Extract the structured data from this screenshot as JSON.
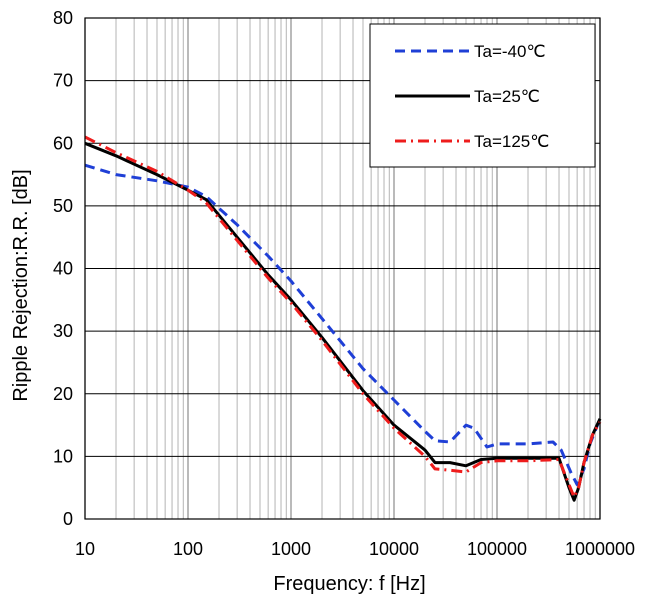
{
  "chart_data": {
    "type": "line",
    "xlabel": "Frequency: f [Hz]",
    "ylabel": "Ripple Rejection:R.R. [dB]",
    "x_scale": "log",
    "xlim": [
      10,
      1000000
    ],
    "ylim": [
      0,
      80
    ],
    "grid": true,
    "legend_position": "top-right",
    "x_ticks": [
      {
        "value": 10,
        "label": "10"
      },
      {
        "value": 100,
        "label": "100"
      },
      {
        "value": 1000,
        "label": "1000"
      },
      {
        "value": 10000,
        "label": "10000"
      },
      {
        "value": 100000,
        "label": "100000"
      },
      {
        "value": 1000000,
        "label": "1000000"
      }
    ],
    "y_ticks": [
      {
        "value": 0,
        "label": "0"
      },
      {
        "value": 10,
        "label": "10"
      },
      {
        "value": 20,
        "label": "20"
      },
      {
        "value": 30,
        "label": "30"
      },
      {
        "value": 40,
        "label": "40"
      },
      {
        "value": 50,
        "label": "50"
      },
      {
        "value": 60,
        "label": "60"
      },
      {
        "value": 70,
        "label": "70"
      },
      {
        "value": 80,
        "label": "80"
      }
    ],
    "series": [
      {
        "name": "Ta=-40℃",
        "color": "#1f3fd6",
        "style": "dashed",
        "points": [
          [
            10,
            56.5
          ],
          [
            20,
            55
          ],
          [
            50,
            54
          ],
          [
            100,
            53
          ],
          [
            150,
            51.5
          ],
          [
            300,
            47
          ],
          [
            600,
            42
          ],
          [
            1000,
            38
          ],
          [
            2000,
            32
          ],
          [
            5000,
            24
          ],
          [
            10000,
            19
          ],
          [
            20000,
            14
          ],
          [
            25000,
            12.5
          ],
          [
            35000,
            12.3
          ],
          [
            50000,
            15
          ],
          [
            60000,
            14.5
          ],
          [
            80000,
            11.5
          ],
          [
            100000,
            12
          ],
          [
            200000,
            12
          ],
          [
            350000,
            12.3
          ],
          [
            420000,
            11
          ],
          [
            520000,
            7.5
          ],
          [
            600000,
            5.5
          ],
          [
            700000,
            8
          ],
          [
            800000,
            12
          ],
          [
            1000000,
            16
          ]
        ]
      },
      {
        "name": "Ta=25℃",
        "color": "#000000",
        "style": "solid",
        "points": [
          [
            10,
            60
          ],
          [
            20,
            58
          ],
          [
            50,
            55
          ],
          [
            100,
            52.5
          ],
          [
            150,
            51
          ],
          [
            300,
            45
          ],
          [
            600,
            39
          ],
          [
            1000,
            35
          ],
          [
            2000,
            29
          ],
          [
            5000,
            20.5
          ],
          [
            10000,
            15
          ],
          [
            20000,
            11
          ],
          [
            25000,
            9
          ],
          [
            35000,
            9
          ],
          [
            50000,
            8.5
          ],
          [
            70000,
            9.5
          ],
          [
            100000,
            9.7
          ],
          [
            200000,
            9.7
          ],
          [
            400000,
            9.7
          ],
          [
            500000,
            5
          ],
          [
            560000,
            3
          ],
          [
            620000,
            5
          ],
          [
            700000,
            9
          ],
          [
            850000,
            13.5
          ],
          [
            1000000,
            16
          ]
        ]
      },
      {
        "name": "Ta=125℃",
        "color": "#ee1c1c",
        "style": "dashdot",
        "points": [
          [
            10,
            61
          ],
          [
            20,
            58.5
          ],
          [
            50,
            55.5
          ],
          [
            100,
            52.5
          ],
          [
            150,
            50.5
          ],
          [
            300,
            44.5
          ],
          [
            600,
            38.5
          ],
          [
            1000,
            34.5
          ],
          [
            2000,
            28.5
          ],
          [
            5000,
            20
          ],
          [
            10000,
            14.5
          ],
          [
            20000,
            10
          ],
          [
            25000,
            8
          ],
          [
            35000,
            7.8
          ],
          [
            50000,
            7.5
          ],
          [
            70000,
            9
          ],
          [
            100000,
            9.3
          ],
          [
            200000,
            9.3
          ],
          [
            400000,
            9.5
          ],
          [
            500000,
            5.5
          ],
          [
            560000,
            3.5
          ],
          [
            620000,
            5
          ],
          [
            700000,
            9
          ],
          [
            850000,
            13.5
          ],
          [
            1000000,
            15.5
          ]
        ]
      }
    ]
  }
}
